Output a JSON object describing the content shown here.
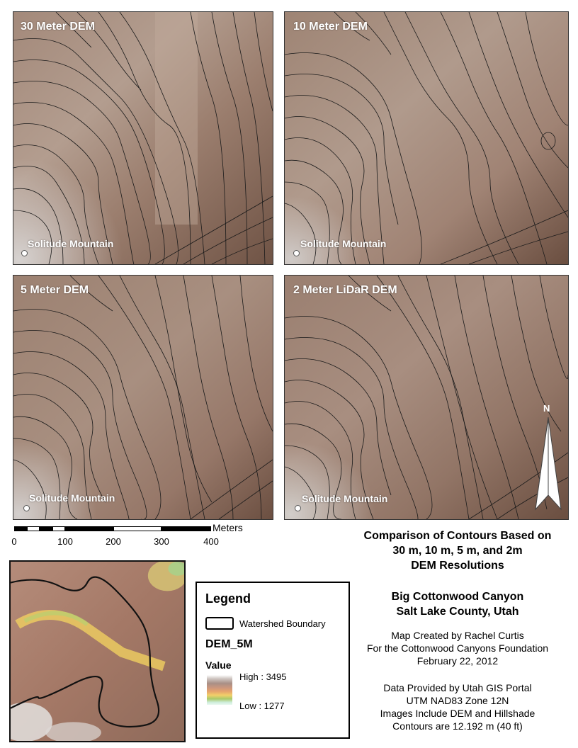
{
  "panels": [
    {
      "title": "30 Meter DEM",
      "location_label": "Solitude Mountain"
    },
    {
      "title": "10 Meter DEM",
      "location_label": "Solitude Mountain"
    },
    {
      "title": "5 Meter DEM",
      "location_label": "Solitude Mountain"
    },
    {
      "title": "2 Meter LiDaR DEM",
      "location_label": "Solitude Mountain"
    }
  ],
  "scale_bar": {
    "unit": "Meters",
    "ticks": [
      "0",
      "100",
      "200",
      "300",
      "400"
    ]
  },
  "north_arrow": {
    "label": "N"
  },
  "title": {
    "line1": "Comparison of Contours Based on",
    "line2": "30 m, 10 m, 5 m, and 2m",
    "line3": "DEM Resolutions"
  },
  "subtitle": {
    "line1": "Big Cottonwood Canyon",
    "line2": "Salt Lake County, Utah"
  },
  "credits": {
    "line1": "Map Created by Rachel Curtis",
    "line2": "For the Cottonwood Canyons Foundation",
    "line3": "February 22, 2012"
  },
  "data_info": {
    "line1": "Data Provided by Utah GIS Portal",
    "line2": "UTM NAD83 Zone 12N",
    "line3": "Images Include DEM and Hillshade",
    "line4": "Contours are 12.192 m (40 ft)"
  },
  "legend": {
    "title": "Legend",
    "boundary_label": "Watershed Boundary",
    "layer_name": "DEM_5M",
    "value_heading": "Value",
    "high_label": "High : 3495",
    "low_label": "Low : 1277"
  },
  "colors": {
    "terrain_brown": "#8c6e5c",
    "terrain_light": "#c4b0a3",
    "contour": "#1a1a1a"
  }
}
